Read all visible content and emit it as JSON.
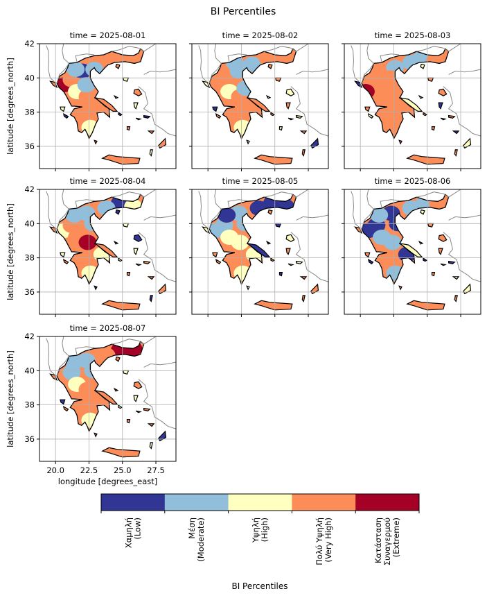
{
  "figure": {
    "title": "BI Percentiles"
  },
  "axes": {
    "xlabel": "longitude [degrees_east]",
    "ylabel": "latitude [degrees_north]",
    "xlim": [
      18.8,
      29.0
    ],
    "ylim": [
      34.7,
      42.0
    ],
    "xticks": [
      20.0,
      22.5,
      25.0,
      27.5
    ],
    "xtick_labels": [
      "20.0",
      "22.5",
      "25.0",
      "27.5"
    ],
    "yticks": [
      36,
      38,
      40,
      42
    ],
    "ytick_labels": [
      "36",
      "38",
      "40",
      "42"
    ],
    "grid": true
  },
  "panels": [
    {
      "title": "time = 2025-08-01"
    },
    {
      "title": "time = 2025-08-02"
    },
    {
      "title": "time = 2025-08-03"
    },
    {
      "title": "time = 2025-08-04"
    },
    {
      "title": "time = 2025-08-05"
    },
    {
      "title": "time = 2025-08-06"
    },
    {
      "title": "time = 2025-08-07"
    }
  ],
  "colorbar": {
    "title": "BI Percentiles",
    "classes": [
      {
        "label_line1": "Χαμηλή",
        "label_line2": "(Low)",
        "color": "#313695"
      },
      {
        "label_line1": "Μέση",
        "label_line2": "(Moderate)",
        "color": "#91bfdb"
      },
      {
        "label_line1": "Υψηλή",
        "label_line2": "(High)",
        "color": "#ffffbf"
      },
      {
        "label_line1": "Πολύ Υψηλή",
        "label_line2": "(Very High)",
        "color": "#fc8d59"
      },
      {
        "label_line1": "Κατάσταση",
        "label_line2": "Συναγερμού",
        "label_line3": "(Extreme)",
        "color": "#a50026"
      }
    ]
  },
  "colors": {
    "coastline": "#000000",
    "borders": "#888888",
    "grid": "#b0b0b0"
  }
}
